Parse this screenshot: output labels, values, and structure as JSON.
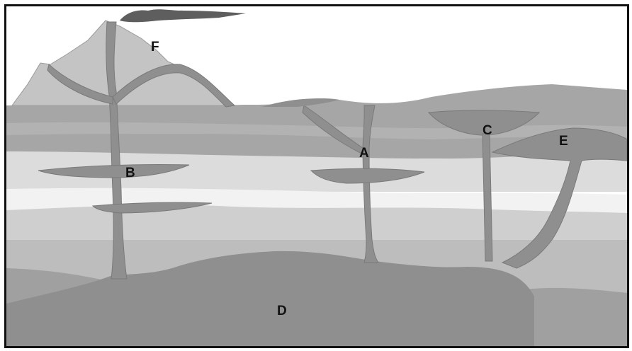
{
  "diagram": {
    "labels": {
      "a": "A",
      "b": "B",
      "c": "C",
      "d": "D",
      "e": "E",
      "f": "F"
    }
  },
  "colors": {
    "magma": "#8f8f8f",
    "volcano": "#bdbdbd",
    "layer_dark": "#a3a3a3",
    "layer_light": "#dcdcdc",
    "layer_pale": "#f1f1f1",
    "smoke": "#5e5e5e"
  }
}
